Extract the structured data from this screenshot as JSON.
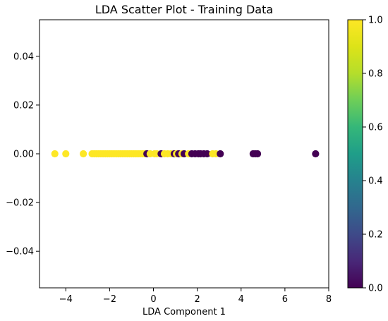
{
  "chart_data": {
    "type": "scatter",
    "title": "LDA Scatter Plot - Training Data",
    "xlabel": "LDA Component 1",
    "ylabel": "",
    "xlim": [
      -5.2,
      8.0
    ],
    "ylim": [
      -0.055,
      0.055
    ],
    "xticks": [
      -4,
      -2,
      0,
      2,
      4,
      6,
      8
    ],
    "yticks": [
      -0.04,
      -0.02,
      0.0,
      0.02,
      0.04
    ],
    "xtick_labels": [
      "−4",
      "−2",
      "0",
      "2",
      "4",
      "6",
      "8"
    ],
    "ytick_labels": [
      "−0.04",
      "−0.02",
      "0.00",
      "0.02",
      "0.04"
    ],
    "grid": false,
    "colormap": "viridis",
    "colorbar": {
      "range": [
        0.0,
        1.0
      ],
      "ticks": [
        0.0,
        0.2,
        0.4,
        0.6,
        0.8,
        1.0
      ],
      "tick_labels": [
        "0.0",
        "0.2",
        "0.4",
        "0.6",
        "0.8",
        "1.0"
      ]
    },
    "colors": {
      "class_0": "#440154",
      "class_1": "#fde725"
    },
    "points": [
      {
        "x": -4.5,
        "y": 0,
        "c": 1
      },
      {
        "x": -4.0,
        "y": 0,
        "c": 1
      },
      {
        "x": -3.2,
        "y": 0,
        "c": 1
      },
      {
        "x": -2.8,
        "y": 0,
        "c": 1
      },
      {
        "x": -2.7,
        "y": 0,
        "c": 1
      },
      {
        "x": -2.6,
        "y": 0,
        "c": 1
      },
      {
        "x": -2.5,
        "y": 0,
        "c": 1
      },
      {
        "x": -2.4,
        "y": 0,
        "c": 1
      },
      {
        "x": -2.3,
        "y": 0,
        "c": 1
      },
      {
        "x": -2.2,
        "y": 0,
        "c": 1
      },
      {
        "x": -2.1,
        "y": 0,
        "c": 1
      },
      {
        "x": -2.0,
        "y": 0,
        "c": 1
      },
      {
        "x": -1.9,
        "y": 0,
        "c": 1
      },
      {
        "x": -1.8,
        "y": 0,
        "c": 1
      },
      {
        "x": -1.7,
        "y": 0,
        "c": 1
      },
      {
        "x": -1.6,
        "y": 0,
        "c": 1
      },
      {
        "x": -1.5,
        "y": 0,
        "c": 1
      },
      {
        "x": -1.4,
        "y": 0,
        "c": 1
      },
      {
        "x": -1.3,
        "y": 0,
        "c": 1
      },
      {
        "x": -1.2,
        "y": 0,
        "c": 1
      },
      {
        "x": -1.1,
        "y": 0,
        "c": 1
      },
      {
        "x": -1.0,
        "y": 0,
        "c": 1
      },
      {
        "x": -0.9,
        "y": 0,
        "c": 1
      },
      {
        "x": -0.8,
        "y": 0,
        "c": 1
      },
      {
        "x": -0.7,
        "y": 0,
        "c": 1
      },
      {
        "x": -0.6,
        "y": 0,
        "c": 1
      },
      {
        "x": -0.5,
        "y": 0,
        "c": 1
      },
      {
        "x": -0.4,
        "y": 0,
        "c": 1
      },
      {
        "x": -0.3,
        "y": 0,
        "c": 0
      },
      {
        "x": -0.15,
        "y": 0,
        "c": 1
      },
      {
        "x": 0.05,
        "y": 0,
        "c": 1
      },
      {
        "x": 0.15,
        "y": 0,
        "c": 1
      },
      {
        "x": 0.35,
        "y": 0,
        "c": 0
      },
      {
        "x": 0.5,
        "y": 0,
        "c": 1
      },
      {
        "x": 0.65,
        "y": 0,
        "c": 1
      },
      {
        "x": 0.8,
        "y": 0,
        "c": 1
      },
      {
        "x": 0.95,
        "y": 0,
        "c": 0
      },
      {
        "x": 1.05,
        "y": 0,
        "c": 1
      },
      {
        "x": 1.15,
        "y": 0,
        "c": 0
      },
      {
        "x": 1.3,
        "y": 0,
        "c": 1
      },
      {
        "x": 1.4,
        "y": 0,
        "c": 0
      },
      {
        "x": 1.6,
        "y": 0,
        "c": 1
      },
      {
        "x": 1.75,
        "y": 0,
        "c": 0
      },
      {
        "x": 1.9,
        "y": 0,
        "c": 0
      },
      {
        "x": 2.05,
        "y": 0,
        "c": 0
      },
      {
        "x": 2.15,
        "y": 0,
        "c": 0
      },
      {
        "x": 2.3,
        "y": 0,
        "c": 0
      },
      {
        "x": 2.45,
        "y": 0,
        "c": 0
      },
      {
        "x": 2.7,
        "y": 0,
        "c": 1
      },
      {
        "x": 2.85,
        "y": 0,
        "c": 1
      },
      {
        "x": 3.05,
        "y": 0,
        "c": 0
      },
      {
        "x": 4.55,
        "y": 0,
        "c": 0
      },
      {
        "x": 4.65,
        "y": 0,
        "c": 0
      },
      {
        "x": 4.75,
        "y": 0,
        "c": 0
      },
      {
        "x": 7.4,
        "y": 0,
        "c": 0
      }
    ]
  }
}
